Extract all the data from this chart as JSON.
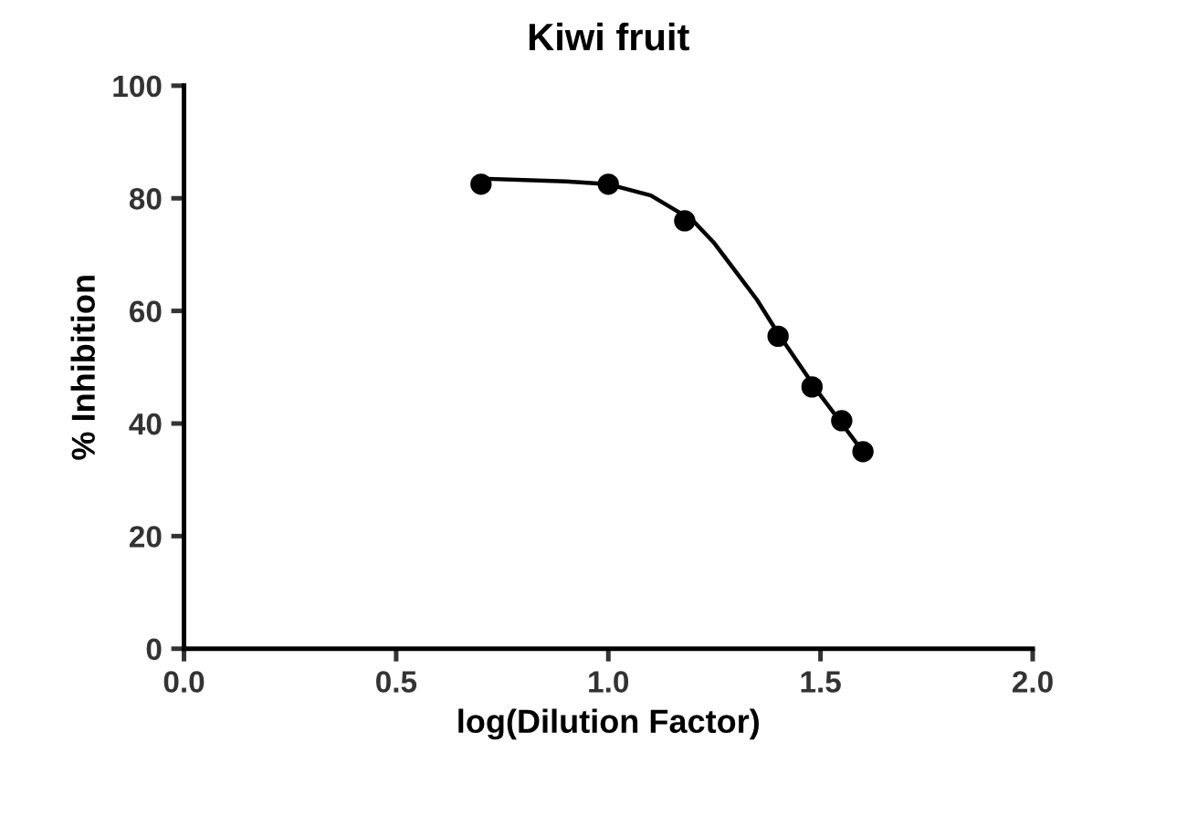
{
  "chart_data": {
    "type": "scatter",
    "title": "Kiwi fruit",
    "xlabel": "log(Dilution Factor)",
    "ylabel": "% Inhibition",
    "xlim": [
      0,
      2
    ],
    "xticks": [
      {
        "value": 0,
        "label": "0.0"
      },
      0.5,
      {
        "value": 1,
        "label": "1.0"
      },
      1.5,
      {
        "value": 2,
        "label": "2.0"
      }
    ],
    "ylim": [
      0,
      100
    ],
    "yticks": [
      0,
      20,
      40,
      60,
      80,
      100
    ],
    "grid": false,
    "series": [
      {
        "color": "#000000",
        "marker": "circle",
        "x": [
          0.7,
          1.0,
          1.18,
          1.4,
          1.48,
          1.55,
          1.6
        ],
        "values": [
          82.5,
          82.5,
          76,
          55.5,
          46.5,
          40.5,
          35
        ]
      },
      {
        "type": "line",
        "color": "#000000",
        "marker": "none",
        "line_style": "solid",
        "x": [
          0.7,
          0.9,
          1.0,
          1.1,
          1.2,
          1.25,
          1.3,
          1.35,
          1.4,
          1.45,
          1.5,
          1.55,
          1.6
        ],
        "values": [
          83.5,
          83,
          82.5,
          80.5,
          76,
          72,
          67,
          62,
          56,
          50.5,
          45,
          40,
          35
        ]
      }
    ]
  }
}
